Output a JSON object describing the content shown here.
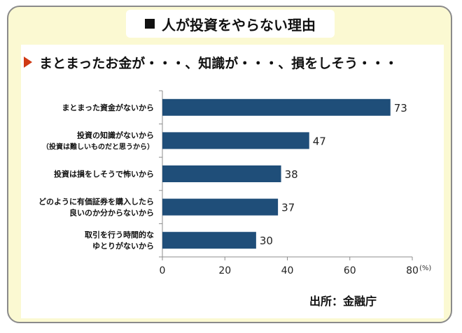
{
  "title": "人が投資をやらない理由",
  "subtitle": "まとまったお金が・・・、知識が・・・、損をしそう・・・",
  "source": "出所：金融庁",
  "colors": {
    "bar": "#1f4e79",
    "accent": "#d03a14",
    "card_bg": "#fbf9d2"
  },
  "chart_data": {
    "type": "bar",
    "orientation": "horizontal",
    "categories": [
      [
        "まとまった資金がないから"
      ],
      [
        "投資の知識がないから",
        "（投資は難しいものだと思うから）"
      ],
      [
        "投資は損をしそうで怖いから"
      ],
      [
        "どのように有価証券を購入したら",
        "良いのか分からないから"
      ],
      [
        "取引を行う時間的な",
        "ゆとりがないから"
      ]
    ],
    "values": [
      73,
      47,
      38,
      37,
      30
    ],
    "xlim": [
      0,
      80
    ],
    "xticks": [
      "0",
      "20",
      "40",
      "60",
      "80"
    ],
    "xunit": "(%)",
    "grid": false
  }
}
